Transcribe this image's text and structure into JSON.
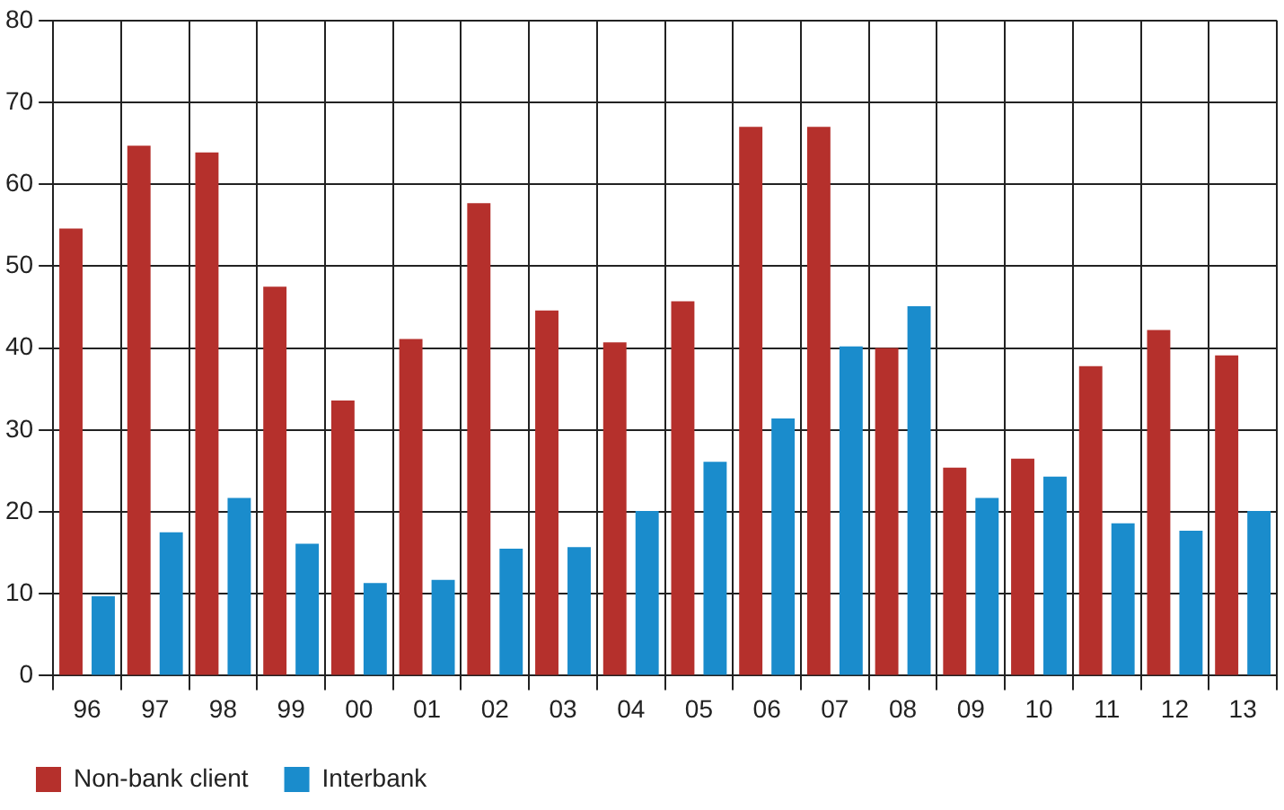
{
  "chart_data": {
    "type": "bar",
    "categories": [
      "96",
      "97",
      "98",
      "99",
      "00",
      "01",
      "02",
      "03",
      "04",
      "05",
      "06",
      "07",
      "08",
      "09",
      "10",
      "11",
      "12",
      "13"
    ],
    "series": [
      {
        "name": "Non-bank client",
        "color": "#b5302c",
        "values": [
          54.6,
          64.7,
          63.9,
          47.5,
          33.6,
          41.1,
          57.7,
          44.6,
          40.7,
          45.7,
          67.0,
          67.0,
          40.0,
          25.4,
          26.5,
          37.8,
          42.2,
          39.1
        ]
      },
      {
        "name": "Interbank",
        "color": "#1a8ccc",
        "values": [
          9.7,
          17.5,
          21.7,
          16.1,
          11.3,
          11.7,
          15.5,
          15.7,
          20.1,
          26.1,
          31.4,
          40.2,
          45.1,
          21.7,
          24.3,
          18.6,
          17.7,
          20.1
        ]
      }
    ],
    "ylim": [
      0,
      80
    ],
    "yticks": [
      0,
      10,
      20,
      30,
      40,
      50,
      60,
      70,
      80
    ],
    "grid": true,
    "legend": "bottom left"
  }
}
